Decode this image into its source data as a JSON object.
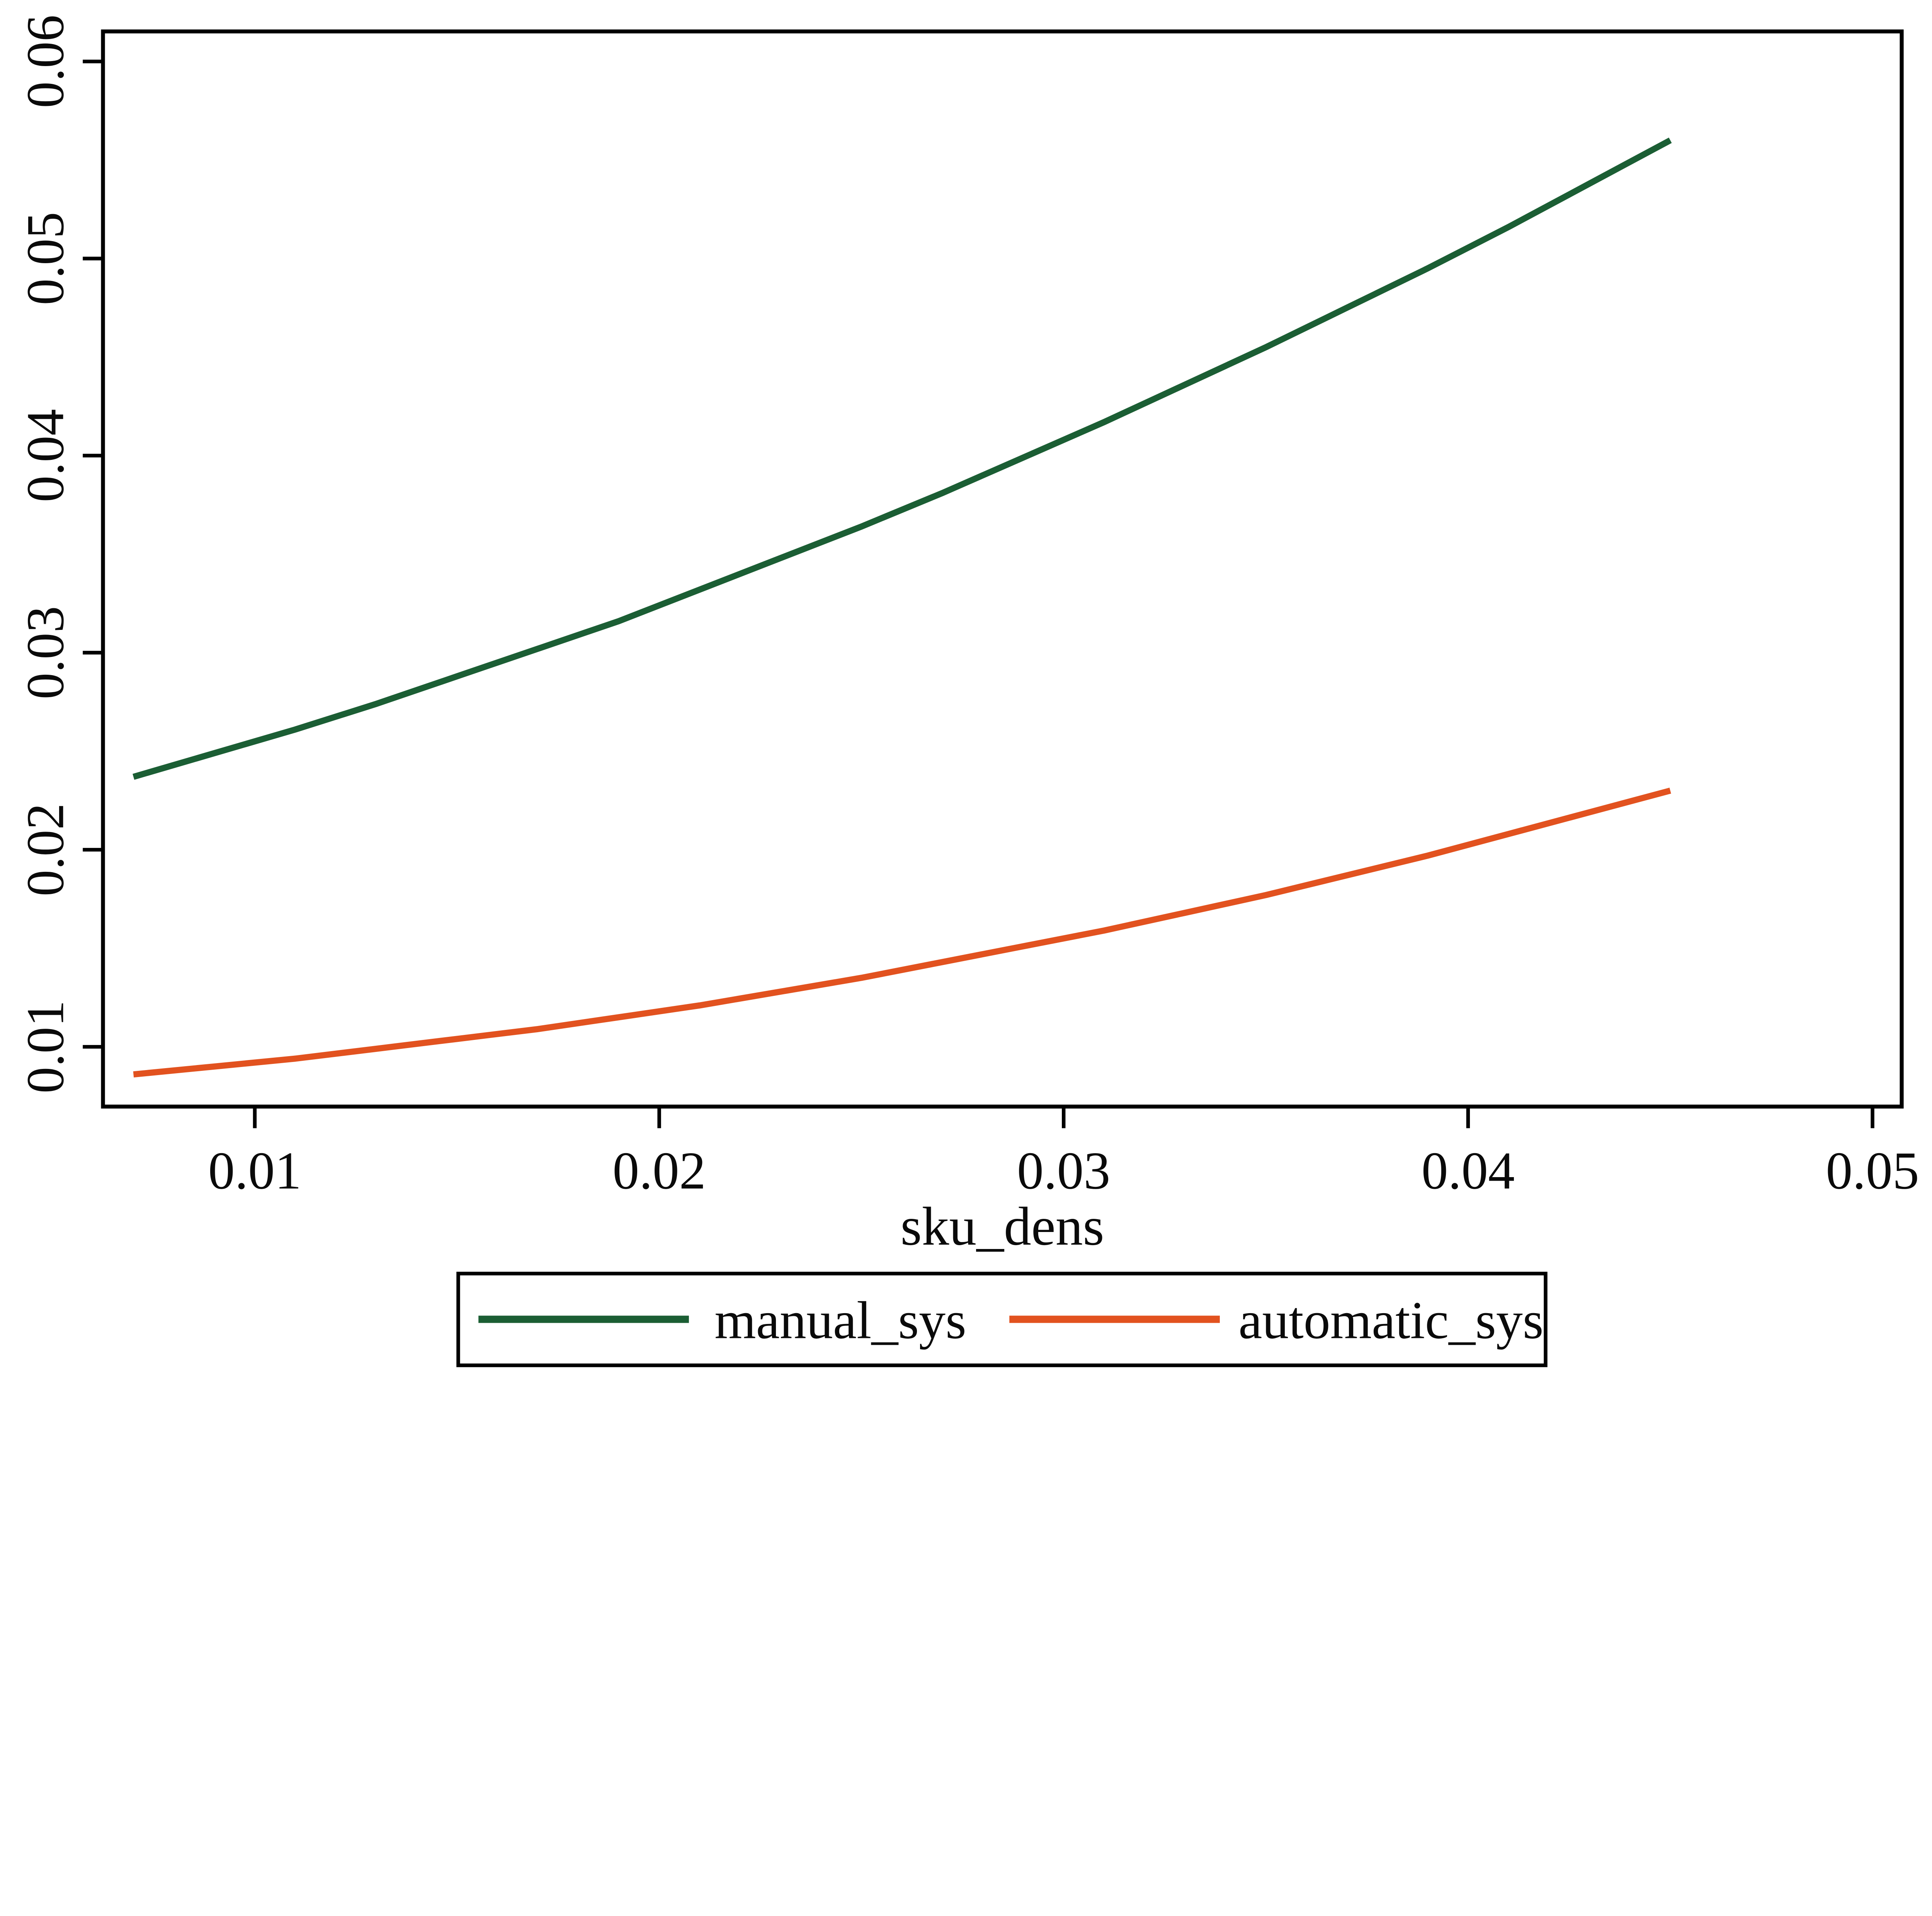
{
  "chart_data": {
    "type": "line",
    "title": "",
    "xlabel": "sku_dens",
    "ylabel": "",
    "grid": false,
    "legend_position": "bottom-outside",
    "xlim": [
      0.0063,
      0.0507
    ],
    "ylim": [
      0.007,
      0.0615
    ],
    "xticks": {
      "values": [
        0.01,
        0.02,
        0.03,
        0.04,
        0.05
      ],
      "labels": [
        "0.01",
        "0.02",
        "0.03",
        "0.04",
        "0.05"
      ]
    },
    "yticks": {
      "values": [
        0.01,
        0.02,
        0.03,
        0.04,
        0.05,
        0.06
      ],
      "labels": [
        "0.01",
        "0.02",
        "0.03",
        "0.04",
        "0.05",
        "0.06"
      ]
    },
    "x": [
      0.007,
      0.009,
      0.011,
      0.013,
      0.015,
      0.017,
      0.019,
      0.021,
      0.023,
      0.025,
      0.027,
      0.029,
      0.031,
      0.033,
      0.035,
      0.037,
      0.039,
      0.041,
      0.043,
      0.045
    ],
    "series": [
      {
        "name": "manual_sys",
        "color": "#1b5e34",
        "values": [
          0.0237,
          0.0249,
          0.0261,
          0.0274,
          0.0288,
          0.0302,
          0.0316,
          0.0332,
          0.0348,
          0.0364,
          0.0381,
          0.0399,
          0.0417,
          0.0436,
          0.0455,
          0.0475,
          0.0495,
          0.0516,
          0.0538,
          0.056
        ]
      },
      {
        "name": "automatic_sys",
        "color": "#e2521f",
        "values": [
          0.0086,
          0.009,
          0.0094,
          0.0099,
          0.0104,
          0.0109,
          0.0115,
          0.0121,
          0.0128,
          0.0135,
          0.0143,
          0.0151,
          0.0159,
          0.0168,
          0.0177,
          0.0187,
          0.0197,
          0.0208,
          0.0219,
          0.023
        ]
      }
    ],
    "colors": {
      "axis": "#000000",
      "background": "#ffffff",
      "text": "#0a0a0a"
    }
  }
}
